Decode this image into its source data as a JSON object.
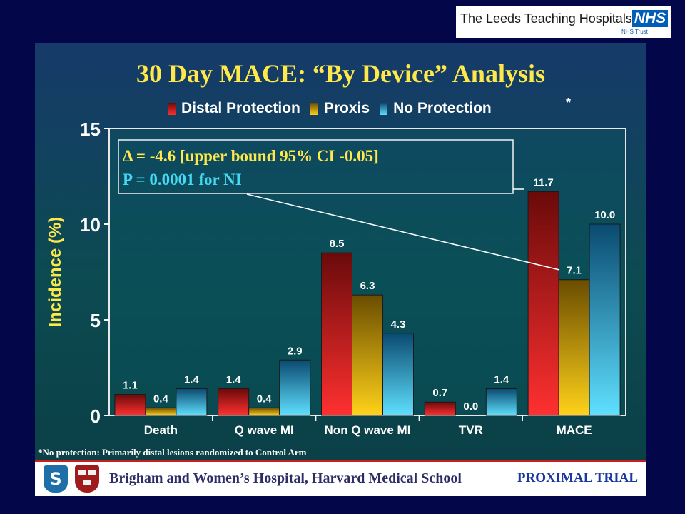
{
  "header": {
    "org_name": "The Leeds Teaching Hospitals",
    "nhs_logo": "NHS",
    "nhs_trust": "NHS Trust"
  },
  "slide": {
    "title": "30 Day MACE: “By Device” Analysis",
    "legend_asterisk": "*",
    "annotation_line1": "Δ = -4.6 [upper bound 95% CI -0.05]",
    "annotation_line2": "P = 0.0001 for NI",
    "footnote": "*No protection:  Primarily distal lesions randomized to Control Arm"
  },
  "footer": {
    "institution": "Brigham and Women’s Hospital, Harvard Medical School",
    "trial_name": "PROXIMAL TRIAL",
    "logo1_icon": "shield-s-icon",
    "logo2_icon": "harvard-crest-icon"
  },
  "colors": {
    "background": "#04064a",
    "title": "#ffe94a",
    "annotation_line1": "#ffe94a",
    "annotation_line2": "#45d8f0",
    "red_line": "#c81e1e"
  },
  "chart_data": {
    "type": "bar",
    "ylabel": "Incidence (%)",
    "ylim": [
      0,
      15
    ],
    "yticks": [
      0,
      5,
      10,
      15
    ],
    "categories": [
      "Death",
      "Q wave MI",
      "Non Q wave MI",
      "TVR",
      "MACE"
    ],
    "series": [
      {
        "name": "Distal Protection",
        "color": "#d81818",
        "values": [
          1.1,
          1.4,
          8.5,
          0.7,
          11.7
        ],
        "labels": [
          "1.1",
          "1.4",
          "8.5",
          "0.7",
          "11.7"
        ]
      },
      {
        "name": "Proxis",
        "color": "#e0a400",
        "values": [
          0.4,
          0.4,
          6.3,
          0.0,
          7.1
        ],
        "labels": [
          "0.4",
          "0.4",
          "6.3",
          "0.0",
          "7.1"
        ]
      },
      {
        "name": "No Protection",
        "color": "#22b8e6",
        "values": [
          1.4,
          2.9,
          4.3,
          1.4,
          10.0
        ],
        "labels": [
          "1.4",
          "2.9",
          "4.3",
          "1.4",
          "10.0"
        ]
      }
    ],
    "legend_position": "top",
    "grid": false
  }
}
